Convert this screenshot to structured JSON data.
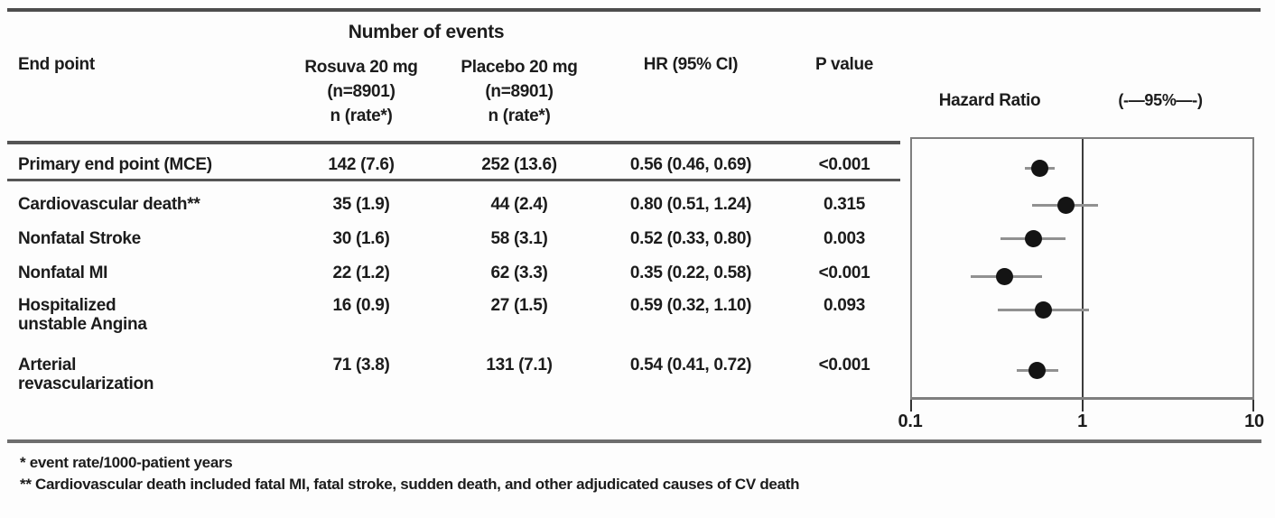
{
  "figure": {
    "group_header": "Number of events",
    "columns": {
      "endpoint": "End point",
      "rosuva": {
        "line1": "Rosuva 20 mg",
        "line2": "(n=8901)",
        "line3": "n (rate*)"
      },
      "placebo": {
        "line1": "Placebo 20 mg",
        "line2": "(n=8901)",
        "line3": "n (rate*)"
      },
      "hr": "HR (95% CI)",
      "pvalue": "P value"
    },
    "plot_header": {
      "title": "Hazard Ratio",
      "ci_legend": "(-—95%—-)"
    },
    "footnotes": [
      "* event rate/1000-patient years",
      "** Cardiovascular death included fatal MI, fatal stroke, sudden death, and other adjudicated causes of CV death"
    ]
  },
  "chart_data": {
    "type": "forest",
    "title": "Hazard Ratio",
    "x_axis": {
      "scale": "log",
      "min": 0.1,
      "max": 10,
      "ticks": [
        0.1,
        1,
        10
      ],
      "tick_labels": [
        "0.1",
        "1",
        "10"
      ],
      "reference_line": 1
    },
    "rows": [
      {
        "endpoint_lines": [
          "Primary end point (MCE)"
        ],
        "rosuva": "142 (7.6)",
        "placebo": "252 (13.6)",
        "hr_text": "0.56 (0.46, 0.69)",
        "p": "<0.001",
        "hr": 0.56,
        "ci_low": 0.46,
        "ci_high": 0.69
      },
      {
        "endpoint_lines": [
          "Cardiovascular death**"
        ],
        "rosuva": "35 (1.9)",
        "placebo": "44 (2.4)",
        "hr_text": "0.80 (0.51, 1.24)",
        "p": "0.315",
        "hr": 0.8,
        "ci_low": 0.51,
        "ci_high": 1.24
      },
      {
        "endpoint_lines": [
          "Nonfatal Stroke"
        ],
        "rosuva": "30 (1.6)",
        "placebo": "58 (3.1)",
        "hr_text": "0.52 (0.33, 0.80)",
        "p": "0.003",
        "hr": 0.52,
        "ci_low": 0.33,
        "ci_high": 0.8
      },
      {
        "endpoint_lines": [
          "Nonfatal MI"
        ],
        "rosuva": "22 (1.2)",
        "placebo": "62 (3.3)",
        "hr_text": "0.35 (0.22, 0.58)",
        "p": "<0.001",
        "hr": 0.35,
        "ci_low": 0.22,
        "ci_high": 0.58
      },
      {
        "endpoint_lines": [
          "Hospitalized",
          "unstable Angina"
        ],
        "rosuva": "16 (0.9)",
        "placebo": "27 (1.5)",
        "hr_text": "0.59 (0.32, 1.10)",
        "p": "0.093",
        "hr": 0.59,
        "ci_low": 0.32,
        "ci_high": 1.1
      },
      {
        "endpoint_lines": [
          "Arterial",
          "revascularization"
        ],
        "rosuva": "71 (3.8)",
        "placebo": "131 (7.1)",
        "hr_text": "0.54 (0.41, 0.72)",
        "p": "<0.001",
        "hr": 0.54,
        "ci_low": 0.41,
        "ci_high": 0.72
      }
    ]
  },
  "colors": {
    "text": "#1c1c1c",
    "rule": "#555555",
    "whisker": "#919191",
    "dot": "#141414",
    "box_border": "#7f7f7f"
  }
}
